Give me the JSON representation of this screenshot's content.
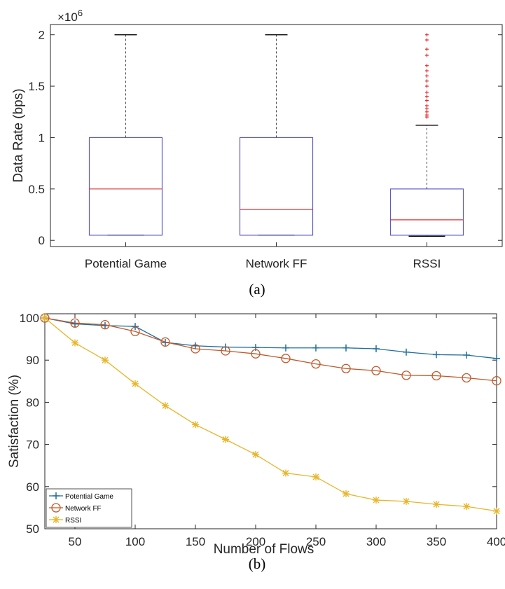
{
  "chart_data": [
    {
      "type": "box",
      "caption": "(a)",
      "ylabel": "Data Rate (bps)",
      "y_exponent_prefix": "×10",
      "y_exponent_power": "6",
      "ylim": [
        -0.06,
        2.1
      ],
      "yticks": [
        0,
        0.5,
        1,
        1.5,
        2
      ],
      "ytick_labels": [
        "0",
        "0.5",
        "1",
        "1.5",
        "2"
      ],
      "categories": [
        "Potential Game",
        "Network FF",
        "RSSI"
      ],
      "boxes": [
        {
          "whisker_low": 0.05,
          "q1": 0.05,
          "median": 0.5,
          "q3": 1.0,
          "whisker_high": 2.0,
          "outliers": []
        },
        {
          "whisker_low": 0.05,
          "q1": 0.05,
          "median": 0.3,
          "q3": 1.0,
          "whisker_high": 2.0,
          "outliers": []
        },
        {
          "whisker_low": 0.04,
          "q1": 0.05,
          "median": 0.2,
          "q3": 0.5,
          "whisker_high": 1.12,
          "outliers": [
            1.2,
            1.22,
            1.25,
            1.28,
            1.31,
            1.36,
            1.4,
            1.44,
            1.5,
            1.55,
            1.6,
            1.65,
            1.7,
            1.8,
            1.86,
            1.95,
            2.0
          ]
        }
      ],
      "colors": {
        "box": "#5a5ac8",
        "median": "#e03030",
        "whisker": "#444444",
        "outlier": "#e03030"
      }
    },
    {
      "type": "line",
      "caption": "(b)",
      "xlabel": "Number of Flows",
      "ylabel": "Satisfaction (%)",
      "xlim": [
        25,
        400
      ],
      "ylim": [
        50,
        101
      ],
      "xticks": [
        50,
        100,
        150,
        200,
        250,
        300,
        350,
        400
      ],
      "yticks": [
        50,
        60,
        70,
        80,
        90,
        100
      ],
      "x": [
        25,
        50,
        75,
        100,
        125,
        150,
        175,
        200,
        225,
        250,
        275,
        300,
        325,
        350,
        375,
        400
      ],
      "series": [
        {
          "name": "Potential Game",
          "marker": "plus",
          "color": "#1f6e9c",
          "values": [
            100,
            98.6,
            98.2,
            98.0,
            94.2,
            93.4,
            93.1,
            93.0,
            92.9,
            92.9,
            92.9,
            92.7,
            91.9,
            91.3,
            91.2,
            90.4
          ]
        },
        {
          "name": "Network FF",
          "marker": "circle",
          "color": "#c0592b",
          "values": [
            100,
            98.8,
            98.4,
            96.8,
            94.3,
            92.7,
            92.2,
            91.5,
            90.4,
            89.1,
            88.0,
            87.5,
            86.4,
            86.3,
            85.8,
            85.1
          ]
        },
        {
          "name": "RSSI",
          "marker": "star",
          "color": "#e8b52a",
          "values": [
            100,
            94.1,
            90.0,
            84.4,
            79.2,
            74.7,
            71.2,
            67.6,
            63.2,
            62.3,
            58.3,
            56.8,
            56.5,
            55.8,
            55.3,
            54.2
          ]
        }
      ],
      "legend_position": "bottom-left"
    }
  ]
}
